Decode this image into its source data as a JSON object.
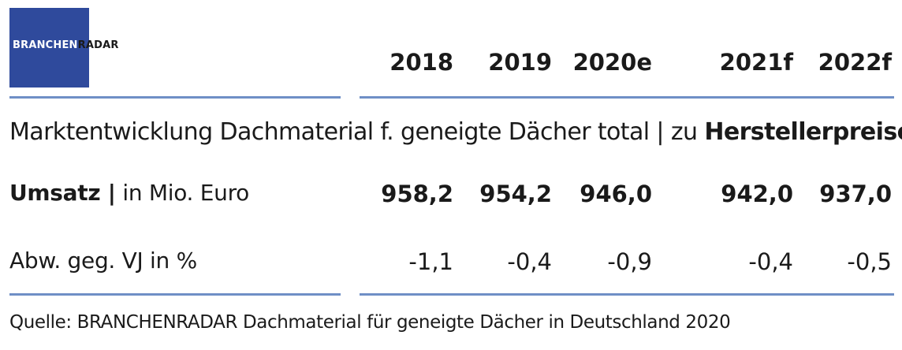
{
  "logo": {
    "part1": "BRANCHEN",
    "part2": "RADAR",
    "ghost": "BRANCHEN RADAR"
  },
  "table": {
    "years": [
      "2018",
      "2019",
      "2020e",
      "2021f",
      "2022f"
    ],
    "title_prefix": "Marktentwicklung Dachmaterial f. geneigte Dächer total | zu ",
    "title_bold": "Herstellerpreisen",
    "rows": [
      {
        "label_bold": "Umsatz |",
        "label_rest": " in Mio. Euro",
        "values": [
          "958,2",
          "954,2",
          "946,0",
          "942,0",
          "937,0"
        ]
      },
      {
        "label": "Abw. geg. VJ in %",
        "values": [
          "-1,1",
          "-0,4",
          "-0,9",
          "-0,4",
          "-0,5"
        ]
      }
    ]
  },
  "source": "Quelle: BRANCHENRADAR Dachmaterial für geneigte Dächer in Deutschland 2020",
  "colors": {
    "logo_bg": "#2f4a9c",
    "rule": "#6f8fc6"
  }
}
